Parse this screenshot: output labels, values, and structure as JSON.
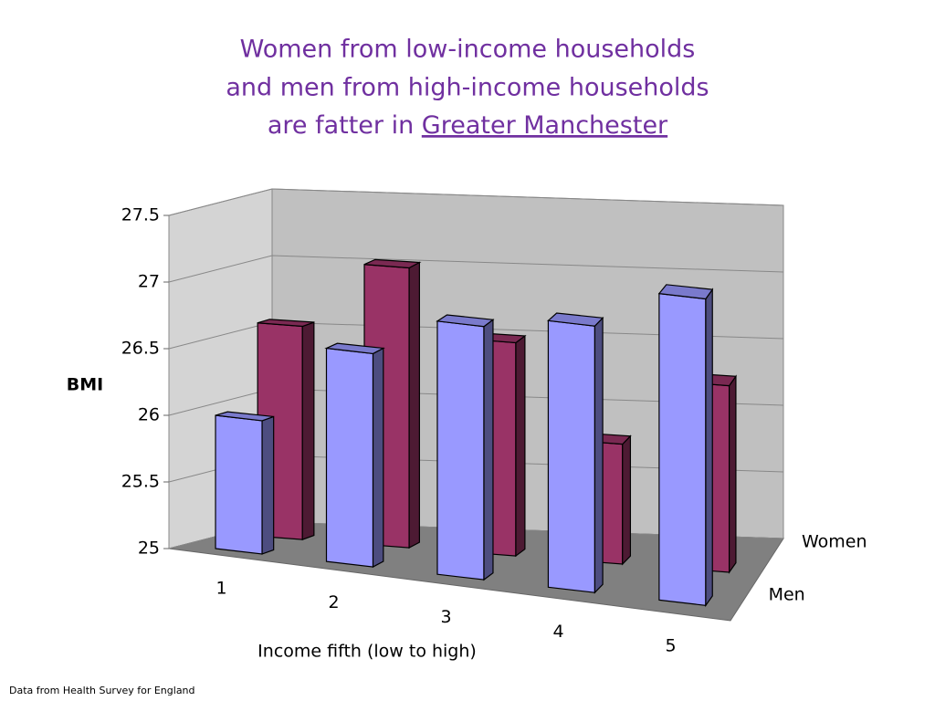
{
  "chart_data": {
    "type": "bar3d",
    "title_lines": [
      "Women from low-income households",
      "and men from high-income households",
      "are fatter in "
    ],
    "title_link": "Greater Manchester",
    "categories": [
      "1",
      "2",
      "3",
      "4",
      "5"
    ],
    "series": [
      {
        "name": "Men",
        "color": "#9999ff",
        "values": [
          26.0,
          26.6,
          26.9,
          27.0,
          27.3
        ]
      },
      {
        "name": "Women",
        "color": "#993366",
        "values": [
          26.6,
          27.1,
          26.6,
          25.9,
          26.4
        ]
      }
    ],
    "xlabel": "Income fifth (low to high)",
    "ylabel": "BMI",
    "ylim": [
      25,
      27.5
    ],
    "yticks": [
      25,
      25.5,
      26,
      26.5,
      27,
      27.5
    ],
    "grid": true,
    "source": "Data from Health Survey for England"
  }
}
